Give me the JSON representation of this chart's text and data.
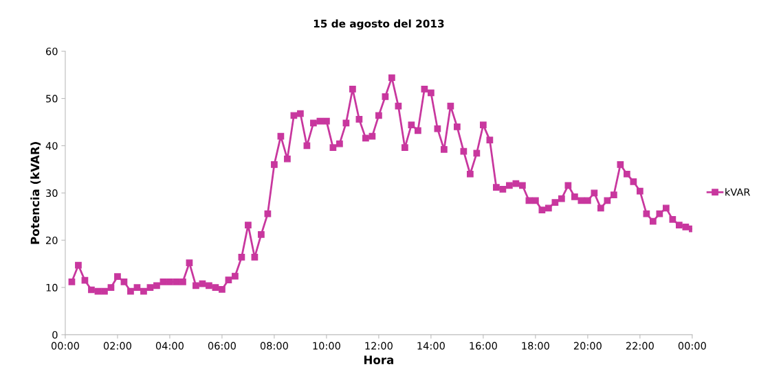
{
  "chart_data": {
    "type": "line",
    "title": "15 de agosto del 2013",
    "xlabel": "Hora",
    "ylabel": "Potencia (kVAR)",
    "x": [
      0.25,
      0.5,
      0.75,
      1,
      1.25,
      1.5,
      1.75,
      2,
      2.25,
      2.5,
      2.75,
      3,
      3.25,
      3.5,
      3.75,
      4,
      4.25,
      4.5,
      4.75,
      5,
      5.25,
      5.5,
      5.75,
      6,
      6.25,
      6.5,
      6.75,
      7,
      7.25,
      7.5,
      7.75,
      8,
      8.25,
      8.5,
      8.75,
      9,
      9.25,
      9.5,
      9.75,
      10,
      10.25,
      10.5,
      10.75,
      11,
      11.25,
      11.5,
      11.75,
      12,
      12.25,
      12.5,
      12.75,
      13,
      13.25,
      13.5,
      13.75,
      14,
      14.25,
      14.5,
      14.75,
      15,
      15.25,
      15.5,
      15.75,
      16,
      16.25,
      16.5,
      16.75,
      17,
      17.25,
      17.5,
      17.75,
      18,
      18.25,
      18.5,
      18.75,
      19,
      19.25,
      19.5,
      19.75,
      20,
      20.25,
      20.5,
      20.75,
      21,
      21.25,
      21.5,
      21.75,
      22,
      22.25,
      22.5,
      22.75,
      23,
      23.25,
      23.5,
      23.75,
      24
    ],
    "series": [
      {
        "name": "kVAR",
        "color": "#c8379e",
        "values": [
          11.2,
          14.7,
          11.5,
          9.5,
          9.2,
          9.2,
          10,
          12.3,
          11.2,
          9.2,
          10,
          9.2,
          10,
          10.4,
          11.2,
          11.2,
          11.2,
          11.2,
          15.2,
          10.4,
          10.8,
          10.4,
          10,
          9.6,
          11.6,
          12.4,
          16.4,
          23.2,
          16.4,
          21.2,
          25.6,
          36,
          42,
          37.2,
          46.4,
          46.8,
          40,
          44.8,
          45.2,
          45.2,
          39.6,
          40.4,
          44.8,
          52,
          45.6,
          41.6,
          42,
          46.4,
          50.4,
          54.4,
          48.4,
          39.6,
          44.4,
          43.2,
          52,
          51.2,
          43.6,
          39.2,
          48.4,
          44,
          38.8,
          34,
          38.4,
          44.4,
          41.2,
          31.2,
          30.8,
          31.6,
          32,
          31.6,
          28.4,
          28.4,
          26.4,
          26.8,
          28,
          28.8,
          31.6,
          29.2,
          28.4,
          28.4,
          30,
          26.8,
          28.4,
          29.6,
          36,
          34,
          32.4,
          30.4,
          25.6,
          24,
          25.6,
          26.8,
          24.4,
          23.2,
          22.8,
          22.4
        ]
      }
    ],
    "xlim": [
      0,
      24
    ],
    "xticks": [
      {
        "value": 0,
        "label": "00:00"
      },
      {
        "value": 2,
        "label": "02:00"
      },
      {
        "value": 4,
        "label": "04:00"
      },
      {
        "value": 6,
        "label": "06:00"
      },
      {
        "value": 8,
        "label": "08:00"
      },
      {
        "value": 10,
        "label": "10:00"
      },
      {
        "value": 12,
        "label": "12:00"
      },
      {
        "value": 14,
        "label": "14:00"
      },
      {
        "value": 16,
        "label": "16:00"
      },
      {
        "value": 18,
        "label": "18:00"
      },
      {
        "value": 20,
        "label": "20:00"
      },
      {
        "value": 22,
        "label": "22:00"
      },
      {
        "value": 24,
        "label": "00:00"
      }
    ],
    "ylim": [
      0,
      60
    ],
    "yticks": [
      0,
      10,
      20,
      30,
      40,
      50,
      60
    ],
    "marker": "square",
    "line_style": "solid",
    "grid": false,
    "legend": "right"
  }
}
